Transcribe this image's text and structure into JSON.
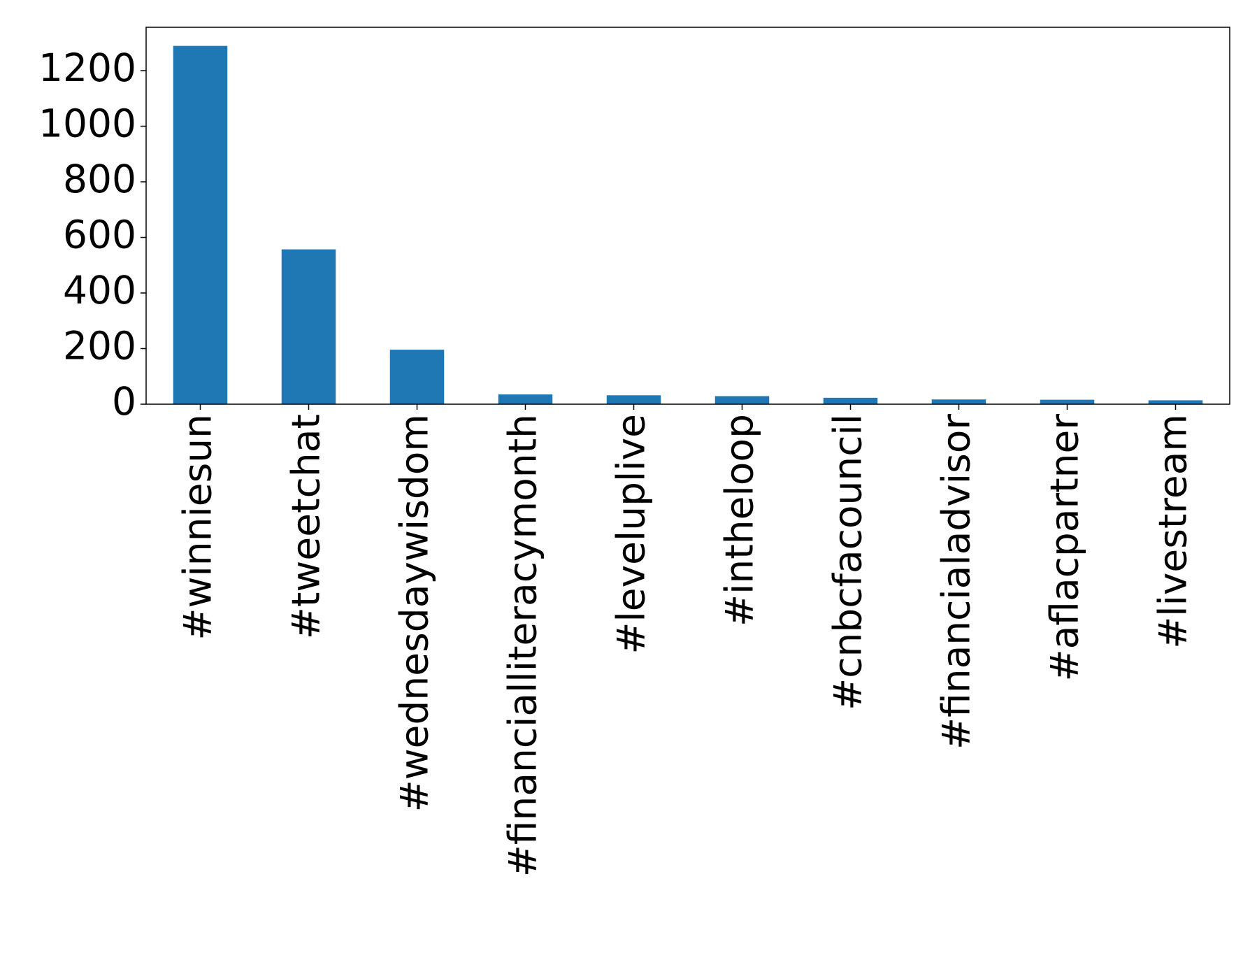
{
  "chart_data": {
    "type": "bar",
    "categories": [
      "#winniesun",
      "#tweetchat",
      "#wednesdaywisdom",
      "#financialliteracymonth",
      "#leveluplive",
      "#intheloop",
      "#cnbcfacouncil",
      "#financialadvisor",
      "#aflacpartner",
      "#livestream"
    ],
    "values": [
      1289,
      557,
      196,
      35,
      32,
      29,
      23,
      17,
      16,
      14
    ],
    "color": "#1f77b4",
    "ylim": [
      0,
      1356
    ],
    "yticks": [
      0,
      200,
      400,
      600,
      800,
      1000,
      1200
    ],
    "grid": false
  }
}
